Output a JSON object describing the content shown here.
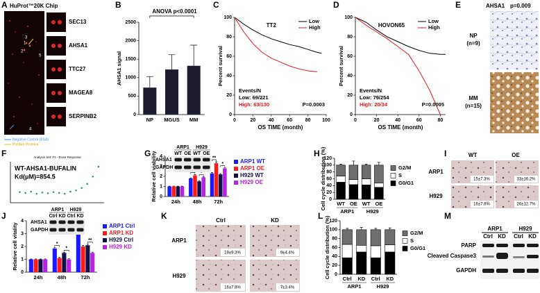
{
  "panel_letters": [
    "A",
    "B",
    "C",
    "D",
    "E",
    "F",
    "G",
    "H",
    "I",
    "J",
    "K",
    "L",
    "M"
  ],
  "panel_a": {
    "title": "HuProt™20K Chip",
    "spot_numbers": [
      "1",
      "2",
      "3",
      "4",
      "5"
    ],
    "proteins": [
      "SEC13",
      "AHSA1",
      "TTC27",
      "MAGEA8",
      "SERPINB2"
    ],
    "legend": [
      "Negative Control (BSA)",
      "Positive Proteins"
    ]
  },
  "panel_e": {
    "title": "AHSA1",
    "p_value": "p=0.009",
    "groups": [
      [
        "NP",
        "(n=9)"
      ],
      [
        "MM",
        "(n=15)"
      ]
    ]
  },
  "panel_i": {
    "columns": [
      "WT",
      "OE"
    ],
    "rows": [
      "ARP1",
      "H929"
    ],
    "values": [
      [
        "15±7.3%",
        "33±16.2%"
      ],
      [
        "16±7.8%",
        "26±12.7%"
      ]
    ]
  },
  "panel_k": {
    "columns": [
      "Ctrl",
      "KD"
    ],
    "rows": [
      "ARP1",
      "H929"
    ],
    "values": [
      [
        "19±9.3%",
        "9±4.4%"
      ],
      [
        "16±7.8%",
        "7±3.4%"
      ]
    ]
  },
  "panel_m": {
    "groups": [
      "ARP1",
      "H929"
    ],
    "lanes": [
      "Ctrl",
      "KD",
      "Ctrl",
      "KD"
    ],
    "rows": [
      "PARP",
      "Cleaved Caspase3",
      "GAPDH"
    ]
  },
  "chart_data": [
    {
      "type": "bar",
      "title": "ANOVA p<0.0001",
      "ylabel": "AHSA1 signal",
      "categories": [
        "NP",
        "MGUS",
        "MM"
      ],
      "values": [
        730,
        1220,
        1320
      ],
      "errors": [
        300,
        400,
        560
      ],
      "color": "#1c1c2e",
      "ylim": [
        0,
        2500
      ],
      "yticks": [
        0,
        500,
        1000,
        1500,
        2000,
        2500
      ]
    },
    {
      "type": "line",
      "title": "TT2",
      "xlabel": "OS TIME (month)",
      "ylabel": "Percent survival",
      "x": [
        0,
        10,
        20,
        30,
        40,
        50,
        60,
        70,
        80,
        90,
        95
      ],
      "series": [
        {
          "name": "Low",
          "color": "#000000",
          "values": [
            100,
            93,
            87,
            82,
            78,
            75,
            72,
            70,
            67,
            64,
            63
          ]
        },
        {
          "name": "High",
          "color": "#e8161b",
          "values": [
            100,
            85,
            73,
            64,
            58,
            54,
            50,
            47,
            45,
            44,
            null
          ]
        }
      ],
      "annotations": [
        {
          "text": "Events/N",
          "color": "#000000"
        },
        {
          "text": "Low:  69/221",
          "color": "#000000"
        },
        {
          "text": "High:  63/130",
          "color": "#e8161b"
        }
      ],
      "p_value": "P=0.0003",
      "xlim": [
        0,
        100
      ],
      "xticks": [
        0,
        20,
        40,
        60,
        80,
        100
      ],
      "ylim": [
        0,
        100
      ],
      "yticks": [
        0,
        20,
        40,
        60,
        80,
        100
      ]
    },
    {
      "type": "line",
      "title": "HOVON65",
      "xlabel": "OS TIME (month)",
      "ylabel": "Percent survival",
      "x": [
        0,
        10,
        20,
        30,
        40,
        50,
        60,
        70,
        80,
        85
      ],
      "series": [
        {
          "name": "Low",
          "color": "#000000",
          "values": [
            100,
            95,
            87,
            80,
            75,
            70,
            66,
            63,
            62,
            62
          ]
        },
        {
          "name": "High",
          "color": "#e8161b",
          "values": [
            100,
            92,
            85,
            78,
            70,
            62,
            45,
            25,
            0,
            null
          ]
        }
      ],
      "annotations": [
        {
          "text": "Events/N",
          "color": "#000000"
        },
        {
          "text": "Low:  79/254",
          "color": "#000000"
        },
        {
          "text": "High:  20/34",
          "color": "#e8161b"
        }
      ],
      "p_value": "P=0.0005",
      "xlim": [
        0,
        85
      ],
      "xticks": [
        0,
        20,
        40,
        60,
        80
      ],
      "ylim": [
        0,
        100
      ],
      "yticks": [
        0,
        20,
        40,
        60,
        80,
        100
      ]
    },
    {
      "type": "scatter",
      "title": "Analysis Set: F1 - Dose Response",
      "annotations": [
        "WT-AHSA1-BUFALIN",
        "Kd(μM)=854.5"
      ],
      "x": [
        1.0,
        1.6,
        2.2,
        2.8,
        3.4,
        4.0,
        4.6,
        5.2,
        5.8,
        6.4,
        7.0,
        7.6,
        8.2,
        8.8,
        9.4
      ],
      "values": [
        2.6,
        2.4,
        2.7,
        2.2,
        2.5,
        2.3,
        2.6,
        2.4,
        2.2,
        2.7,
        3.0,
        3.6,
        4.6,
        6.4,
        8.8
      ],
      "color": "#2e9e6a",
      "xlim": [
        0,
        10
      ],
      "ylim": [
        0,
        10
      ]
    },
    {
      "type": "bar",
      "ylabel": "Relative cell viability",
      "categories": [
        "24h",
        "48h",
        "72h"
      ],
      "series": [
        {
          "name": "ARP1 WT",
          "color": "#1a1aff",
          "values": [
            1.0,
            1.8,
            2.3
          ],
          "errors": [
            0.03,
            0.05,
            0.08
          ]
        },
        {
          "name": "ARP1 OE",
          "color": "#ff1a1a",
          "values": [
            1.0,
            2.1,
            3.3
          ],
          "errors": [
            0.03,
            0.08,
            0.15
          ]
        },
        {
          "name": "H929 WT",
          "color": "#10104a",
          "values": [
            1.0,
            1.5,
            2.2
          ],
          "errors": [
            0.03,
            0.05,
            0.08
          ]
        },
        {
          "name": "H929 OE",
          "color": "#b424e0",
          "values": [
            1.0,
            1.9,
            2.8
          ],
          "errors": [
            0.03,
            0.05,
            0.05
          ]
        }
      ],
      "significance": [
        {
          "category": 1,
          "series": [
            0,
            1
          ],
          "label": "*"
        },
        {
          "category": 1,
          "series": [
            2,
            3
          ],
          "label": "*"
        },
        {
          "category": 2,
          "series": [
            0,
            1
          ],
          "label": "**"
        },
        {
          "category": 2,
          "series": [
            2,
            3
          ],
          "label": "*"
        }
      ],
      "blot": {
        "groups": [
          "ARP1",
          "H929"
        ],
        "lanes": [
          "WT",
          "OE",
          "WT",
          "OE"
        ],
        "rows": [
          "AHSA1",
          "GAPDH"
        ]
      },
      "ylim": [
        0,
        4
      ],
      "yticks": [
        0,
        1,
        2,
        3,
        4
      ]
    },
    {
      "type": "bar",
      "stacked": true,
      "ylabel": "Cell cycle distribution (%)",
      "categories": [
        "WT",
        "OE",
        "WT",
        "OE"
      ],
      "groups": [
        "ARP1",
        "H929"
      ],
      "series": [
        {
          "name": "G0/G1",
          "color": "#000000",
          "values": [
            50,
            43,
            42,
            35
          ],
          "errors": [
            8,
            10,
            6,
            8
          ]
        },
        {
          "name": "S",
          "color": "#ffffff",
          "values": [
            18,
            15,
            18,
            13
          ],
          "errors": [
            5,
            6,
            5,
            5
          ]
        },
        {
          "name": "G2/M",
          "color": "#6e6e6e",
          "values": [
            32,
            42,
            40,
            52
          ],
          "errors": [
            3,
            12,
            3,
            8
          ]
        }
      ],
      "ylim": [
        0,
        120
      ],
      "yticks": [
        0,
        20,
        40,
        60,
        80,
        100,
        120
      ]
    },
    {
      "type": "bar",
      "ylabel": "Relative cell vitality",
      "categories": [
        "24h",
        "48h",
        "72h"
      ],
      "series": [
        {
          "name": "ARP1 Ctrl",
          "color": "#1a1aff",
          "values": [
            1.0,
            1.85,
            3.4
          ],
          "errors": [
            0.03,
            0.06,
            0.15
          ]
        },
        {
          "name": "ARP1 KD",
          "color": "#ff1a1a",
          "values": [
            1.0,
            1.1,
            2.0
          ],
          "errors": [
            0.03,
            0.05,
            0.08
          ]
        },
        {
          "name": "H929 Ctrl",
          "color": "#10104a",
          "values": [
            1.0,
            1.5,
            2.1
          ],
          "errors": [
            0.03,
            0.05,
            0.08
          ]
        },
        {
          "name": "H929 KD",
          "color": "#b424e0",
          "values": [
            1.0,
            1.0,
            1.5
          ],
          "errors": [
            0.03,
            0.05,
            0.06
          ]
        }
      ],
      "significance": [
        {
          "category": 1,
          "series": [
            0,
            1
          ],
          "label": "*"
        },
        {
          "category": 1,
          "series": [
            2,
            3
          ],
          "label": "*"
        },
        {
          "category": 2,
          "series": [
            0,
            1
          ],
          "label": "***"
        },
        {
          "category": 2,
          "series": [
            2,
            3
          ],
          "label": "**"
        }
      ],
      "blot": {
        "groups": [
          "ARP1",
          "H929"
        ],
        "lanes": [
          "Ctrl",
          "KD",
          "Ctrl",
          "KD"
        ],
        "rows": [
          "AHSA1",
          "GAPDH"
        ]
      },
      "ylim": [
        0,
        4
      ],
      "yticks": [
        0,
        1,
        2,
        3,
        4
      ]
    },
    {
      "type": "bar",
      "stacked": true,
      "ylabel": "Cell cycle distribution (%)",
      "categories": [
        "Ctrl",
        "KD",
        "Ctrl",
        "KD"
      ],
      "groups": [
        "ARP1",
        "H929"
      ],
      "series": [
        {
          "name": "G0/G1",
          "color": "#000000",
          "values": [
            37,
            50,
            37,
            50
          ],
          "errors": [
            3,
            8,
            3,
            8
          ]
        },
        {
          "name": "S",
          "color": "#ffffff",
          "values": [
            30,
            15,
            27,
            16
          ],
          "errors": [
            3,
            5,
            4,
            5
          ]
        },
        {
          "name": "G2/M",
          "color": "#6e6e6e",
          "values": [
            33,
            35,
            36,
            34
          ],
          "errors": [
            3,
            5,
            3,
            4
          ]
        }
      ],
      "ylim": [
        0,
        120
      ],
      "yticks": [
        0,
        20,
        40,
        60,
        80,
        100,
        120
      ]
    }
  ]
}
